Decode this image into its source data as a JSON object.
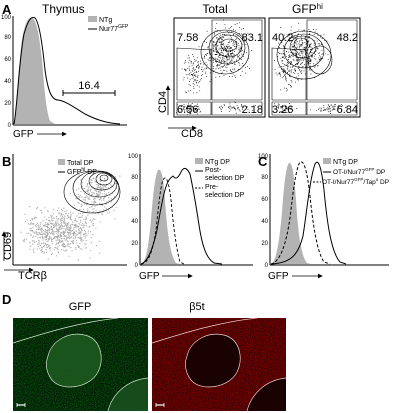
{
  "panel_a": {
    "letter": "A",
    "histogram": {
      "title": "Thymus",
      "legend": {
        "item1": "NTg",
        "item2": "Nur77",
        "item2_sup": "GFP"
      },
      "y_ticks": [
        "0",
        "20",
        "40",
        "60",
        "80",
        "100"
      ],
      "gate_value": "16.4",
      "x_label": "GFP"
    },
    "total_plot": {
      "title": "Total",
      "q_tl": "7.58",
      "q_tr": "83.1",
      "q_bl": "6.56",
      "q_br": "2.18"
    },
    "gfphi_plot": {
      "title": "GFP",
      "title_sup": "hi",
      "q_tl": "40.2",
      "q_tr": "48.2",
      "q_bl": "3.26",
      "q_br": "6.84"
    },
    "y_label": "CD4",
    "x_label": "CD8"
  },
  "panel_b": {
    "letter": "B",
    "dot_plot": {
      "legend": {
        "item1": "Total DP",
        "item2_pre": "GFP",
        "item2_sup": "hi",
        "item2_post": " DP"
      },
      "y_label": "CD69",
      "x_label": "TCRβ"
    },
    "histogram": {
      "y_ticks": [
        "0",
        "20",
        "40",
        "60",
        "80",
        "100"
      ],
      "legend": {
        "item1": "NTg DP",
        "item2a": "Post-",
        "item2b": "selection DP",
        "item3a": "Pre-",
        "item3b": "selection DP"
      },
      "x_label": "GFP"
    }
  },
  "panel_c": {
    "letter": "C",
    "histogram": {
      "y_ticks": [
        "0",
        "20",
        "40",
        "60",
        "80",
        "100"
      ],
      "legend": {
        "item1": "NTg DP",
        "item2_pre": "OT-I/Nur77",
        "item2_sup": "GFP",
        "item2_post": " DP",
        "item3_pre": "OT-I/Nur77",
        "item3_sup": "GFP",
        "item3_mid": "/Tap",
        "item3_sup2": "o",
        "item3_post": " DP"
      },
      "x_label": "GFP"
    }
  },
  "panel_d": {
    "letter": "D",
    "left_title": "GFP",
    "right_title": "β5t"
  }
}
